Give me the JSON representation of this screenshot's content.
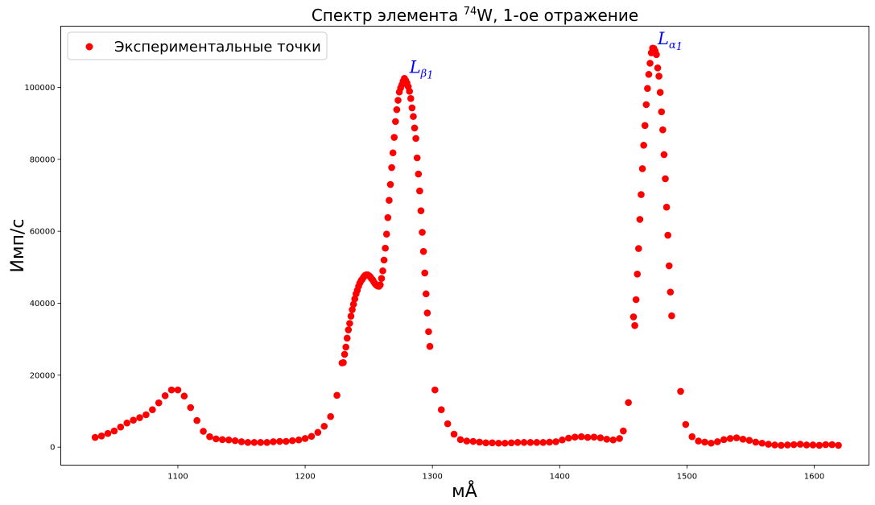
{
  "chart_data": {
    "type": "scatter",
    "title": {
      "prefix": "Спектр элемента ",
      "superscript": "74",
      "suffix": "W, 1-ое отражение"
    },
    "xlabel": "мÅ",
    "ylabel": "Имп/с",
    "xlim": [
      1008,
      1643
    ],
    "ylim": [
      -5000,
      117000
    ],
    "x_ticks": [
      1100,
      1200,
      1300,
      1400,
      1500,
      1600
    ],
    "y_ticks": [
      0,
      20000,
      40000,
      60000,
      80000,
      100000
    ],
    "grid": false,
    "legend_position": "top-left",
    "marker_color": "#ff0000",
    "annotation_color": "#0000ff",
    "series": [
      {
        "name": "Экспериментальные точки",
        "points": [
          [
            1035,
            2700
          ],
          [
            1040,
            3100
          ],
          [
            1045,
            3800
          ],
          [
            1050,
            4500
          ],
          [
            1055,
            5600
          ],
          [
            1060,
            6700
          ],
          [
            1065,
            7500
          ],
          [
            1070,
            8200
          ],
          [
            1075,
            9000
          ],
          [
            1080,
            10400
          ],
          [
            1085,
            12300
          ],
          [
            1090,
            14300
          ],
          [
            1095,
            15900
          ],
          [
            1100,
            15900
          ],
          [
            1105,
            14200
          ],
          [
            1110,
            11000
          ],
          [
            1115,
            7400
          ],
          [
            1120,
            4400
          ],
          [
            1125,
            2900
          ],
          [
            1130,
            2300
          ],
          [
            1135,
            2100
          ],
          [
            1140,
            2000
          ],
          [
            1145,
            1800
          ],
          [
            1150,
            1500
          ],
          [
            1155,
            1300
          ],
          [
            1160,
            1300
          ],
          [
            1165,
            1300
          ],
          [
            1170,
            1300
          ],
          [
            1175,
            1500
          ],
          [
            1180,
            1600
          ],
          [
            1185,
            1600
          ],
          [
            1190,
            1800
          ],
          [
            1195,
            2000
          ],
          [
            1200,
            2400
          ],
          [
            1205,
            3000
          ],
          [
            1210,
            4100
          ],
          [
            1215,
            5800
          ],
          [
            1220,
            8500
          ],
          [
            1225,
            14400
          ],
          [
            1229,
            23400
          ],
          [
            1230,
            23500
          ],
          [
            1231,
            25800
          ],
          [
            1232,
            27800
          ],
          [
            1233,
            30300
          ],
          [
            1234,
            32600
          ],
          [
            1235,
            34400
          ],
          [
            1236,
            36400
          ],
          [
            1237,
            38200
          ],
          [
            1238,
            39700
          ],
          [
            1239,
            41200
          ],
          [
            1240,
            42600
          ],
          [
            1241,
            43600
          ],
          [
            1242,
            44700
          ],
          [
            1243,
            45600
          ],
          [
            1244,
            46300
          ],
          [
            1245,
            46700
          ],
          [
            1246,
            47300
          ],
          [
            1247,
            47700
          ],
          [
            1248,
            47900
          ],
          [
            1249,
            47900
          ],
          [
            1250,
            47700
          ],
          [
            1251,
            47400
          ],
          [
            1252,
            46900
          ],
          [
            1253,
            46500
          ],
          [
            1254,
            45900
          ],
          [
            1255,
            45400
          ],
          [
            1256,
            45000
          ],
          [
            1257,
            44800
          ],
          [
            1258,
            44700
          ],
          [
            1259,
            45100
          ],
          [
            1260,
            46900
          ],
          [
            1261,
            49000
          ],
          [
            1262,
            52000
          ],
          [
            1263,
            55300
          ],
          [
            1264,
            59200
          ],
          [
            1265,
            63800
          ],
          [
            1266,
            68600
          ],
          [
            1267,
            73000
          ],
          [
            1268,
            77700
          ],
          [
            1269,
            81800
          ],
          [
            1270,
            86100
          ],
          [
            1271,
            90500
          ],
          [
            1272,
            93800
          ],
          [
            1273,
            96400
          ],
          [
            1274,
            98700
          ],
          [
            1275,
            99800
          ],
          [
            1276,
            100700
          ],
          [
            1277,
            101700
          ],
          [
            1278,
            102500
          ],
          [
            1279,
            101900
          ],
          [
            1280,
            101200
          ],
          [
            1281,
            100200
          ],
          [
            1282,
            98900
          ],
          [
            1283,
            96900
          ],
          [
            1284,
            94300
          ],
          [
            1285,
            91900
          ],
          [
            1286,
            88700
          ],
          [
            1287,
            85800
          ],
          [
            1288,
            80400
          ],
          [
            1289,
            75900
          ],
          [
            1290,
            71200
          ],
          [
            1291,
            65700
          ],
          [
            1292,
            59700
          ],
          [
            1293,
            54400
          ],
          [
            1294,
            48400
          ],
          [
            1295,
            42600
          ],
          [
            1296,
            37300
          ],
          [
            1297,
            32100
          ],
          [
            1298,
            28000
          ],
          [
            1302,
            15900
          ],
          [
            1307,
            10400
          ],
          [
            1312,
            6500
          ],
          [
            1317,
            3600
          ],
          [
            1322,
            2100
          ],
          [
            1327,
            1700
          ],
          [
            1332,
            1600
          ],
          [
            1337,
            1400
          ],
          [
            1342,
            1200
          ],
          [
            1347,
            1200
          ],
          [
            1352,
            1100
          ],
          [
            1357,
            1100
          ],
          [
            1362,
            1200
          ],
          [
            1367,
            1300
          ],
          [
            1372,
            1300
          ],
          [
            1377,
            1300
          ],
          [
            1382,
            1300
          ],
          [
            1387,
            1300
          ],
          [
            1392,
            1400
          ],
          [
            1397,
            1500
          ],
          [
            1402,
            2000
          ],
          [
            1407,
            2500
          ],
          [
            1412,
            2800
          ],
          [
            1417,
            2900
          ],
          [
            1422,
            2700
          ],
          [
            1427,
            2800
          ],
          [
            1432,
            2600
          ],
          [
            1437,
            2200
          ],
          [
            1442,
            2000
          ],
          [
            1447,
            2400
          ],
          [
            1450,
            4500
          ],
          [
            1454,
            12400
          ],
          [
            1458,
            36200
          ],
          [
            1459,
            33800
          ],
          [
            1460,
            41000
          ],
          [
            1461,
            48100
          ],
          [
            1462,
            55200
          ],
          [
            1463,
            63300
          ],
          [
            1464,
            70200
          ],
          [
            1465,
            77400
          ],
          [
            1466,
            83900
          ],
          [
            1467,
            89400
          ],
          [
            1468,
            95200
          ],
          [
            1469,
            99700
          ],
          [
            1470,
            103600
          ],
          [
            1471,
            106700
          ],
          [
            1472,
            109600
          ],
          [
            1473,
            110900
          ],
          [
            1474,
            110800
          ],
          [
            1475,
            110100
          ],
          [
            1476,
            109100
          ],
          [
            1477,
            105400
          ],
          [
            1478,
            103100
          ],
          [
            1479,
            98600
          ],
          [
            1480,
            93200
          ],
          [
            1481,
            88200
          ],
          [
            1482,
            81300
          ],
          [
            1483,
            74600
          ],
          [
            1484,
            66700
          ],
          [
            1485,
            58900
          ],
          [
            1486,
            50400
          ],
          [
            1487,
            43100
          ],
          [
            1488,
            36500
          ],
          [
            1495,
            15500
          ],
          [
            1499,
            6300
          ],
          [
            1504,
            2900
          ],
          [
            1509,
            1700
          ],
          [
            1514,
            1400
          ],
          [
            1519,
            1100
          ],
          [
            1524,
            1500
          ],
          [
            1529,
            2100
          ],
          [
            1534,
            2400
          ],
          [
            1539,
            2600
          ],
          [
            1544,
            2200
          ],
          [
            1549,
            1900
          ],
          [
            1554,
            1400
          ],
          [
            1559,
            1100
          ],
          [
            1564,
            800
          ],
          [
            1569,
            600
          ],
          [
            1574,
            500
          ],
          [
            1579,
            600
          ],
          [
            1584,
            700
          ],
          [
            1589,
            800
          ],
          [
            1594,
            600
          ],
          [
            1599,
            600
          ],
          [
            1604,
            500
          ],
          [
            1609,
            700
          ],
          [
            1614,
            700
          ],
          [
            1619,
            500
          ]
        ]
      }
    ],
    "annotations": [
      {
        "main": "L",
        "sub": "β",
        "subsub": "1",
        "x": 1282,
        "y": 104000
      },
      {
        "main": "L",
        "sub": "α",
        "subsub": "1",
        "x": 1477,
        "y": 112000
      }
    ]
  }
}
